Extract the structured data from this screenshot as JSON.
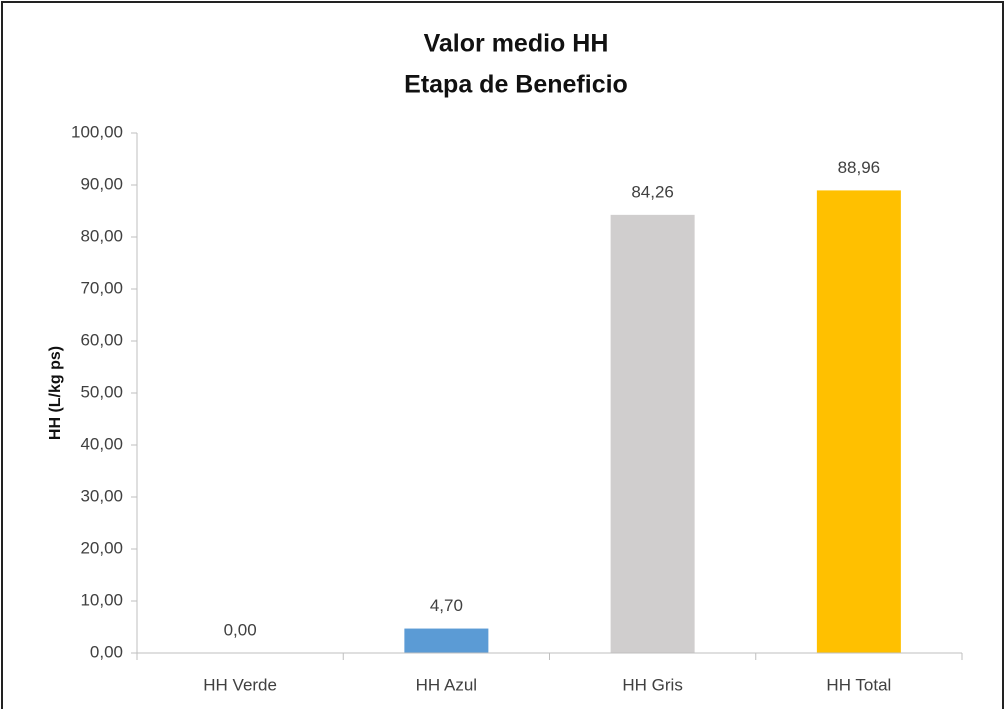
{
  "chart_data": {
    "type": "bar",
    "title": "Valor medio HH",
    "subtitle": "Etapa de Beneficio",
    "y_label": "HH (L/kg ps)",
    "categories": [
      "HH Verde",
      "HH Azul",
      "HH Gris",
      "HH Total"
    ],
    "values": [
      0,
      4.7,
      84.26,
      88.96
    ],
    "value_labels": [
      "0,00",
      "4,70",
      "84,26",
      "88,96"
    ],
    "colors": [
      "#70ad47",
      "#5b9bd5",
      "#d0cece",
      "#ffc000"
    ],
    "ylim": [
      0,
      100
    ],
    "yticks": [
      {
        "value": 0,
        "label": "0,00"
      },
      {
        "value": 10,
        "label": "10,00"
      },
      {
        "value": 20,
        "label": "20,00"
      },
      {
        "value": 30,
        "label": "30,00"
      },
      {
        "value": 40,
        "label": "40,00"
      },
      {
        "value": 50,
        "label": "50,00"
      },
      {
        "value": 60,
        "label": "60,00"
      },
      {
        "value": 70,
        "label": "70,00"
      },
      {
        "value": 80,
        "label": "80,00"
      },
      {
        "value": 90,
        "label": "90,00"
      },
      {
        "value": 100,
        "label": "100,00"
      }
    ],
    "grid": false
  }
}
